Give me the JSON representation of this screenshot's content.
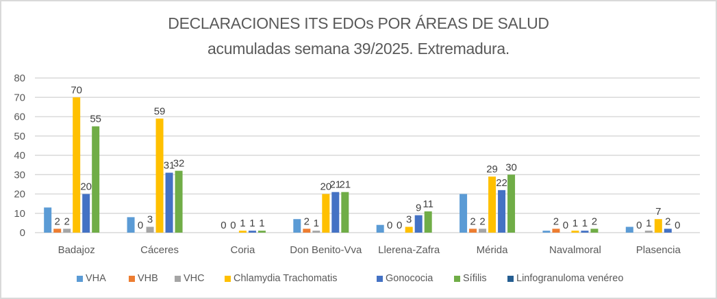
{
  "chart_data": {
    "type": "bar",
    "title": "DECLARACIONES ITS EDOs POR ÁREAS DE SALUD",
    "subtitle": "acumuladas semana 39/2025. Extremadura.",
    "xlabel": "",
    "ylabel": "",
    "ylim": [
      0,
      80
    ],
    "yticks": [
      "0",
      "10",
      "20",
      "30",
      "40",
      "50",
      "60",
      "70",
      "80"
    ],
    "grid": true,
    "legend_position": "bottom",
    "categories": [
      "Badajoz",
      "Cáceres",
      "Coria",
      "Don Benito-Vva",
      "Llerena-Zafra",
      "Mérida",
      "Navalmoral",
      "Plasencia"
    ],
    "series": [
      {
        "name": "VHA",
        "color": "#5B9BD5",
        "values": [
          13,
          8,
          0,
          7,
          4,
          20,
          1,
          3
        ],
        "labels": [
          null,
          null,
          null,
          null,
          null,
          null,
          null,
          null
        ]
      },
      {
        "name": "VHB",
        "color": "#ED7D31",
        "values": [
          2,
          0,
          0,
          2,
          0,
          2,
          2,
          0
        ],
        "labels": [
          "2",
          "0",
          "0",
          "2",
          "0",
          "2",
          "2",
          "0"
        ]
      },
      {
        "name": "VHC",
        "color": "#A5A5A5",
        "values": [
          2,
          3,
          0,
          1,
          0,
          2,
          0,
          1
        ],
        "labels": [
          "2",
          "3",
          "0",
          "1",
          "0",
          "2",
          "0",
          "1"
        ]
      },
      {
        "name": "Chlamydia Trachomatis",
        "color": "#FFC000",
        "values": [
          70,
          59,
          1,
          20,
          3,
          29,
          1,
          7
        ],
        "labels": [
          "70",
          "59",
          "1",
          "20",
          "3",
          "29",
          "1",
          "7"
        ]
      },
      {
        "name": "Gonococia",
        "color": "#4472C4",
        "values": [
          20,
          31,
          1,
          21,
          9,
          22,
          1,
          2
        ],
        "labels": [
          "20",
          "31",
          "1",
          "21",
          "9",
          "22",
          "1",
          "2"
        ]
      },
      {
        "name": "Sífilis",
        "color": "#70AD47",
        "values": [
          55,
          32,
          1,
          21,
          11,
          30,
          2,
          0
        ],
        "labels": [
          "55",
          "32",
          "1",
          "21",
          "11",
          "30",
          "2",
          "0"
        ]
      },
      {
        "name": "Linfogranuloma venéreo",
        "color": "#255E91",
        "values": [
          0,
          0,
          0,
          0,
          0,
          0,
          0,
          0
        ],
        "labels": [
          null,
          null,
          null,
          null,
          null,
          null,
          null,
          null
        ]
      }
    ]
  }
}
